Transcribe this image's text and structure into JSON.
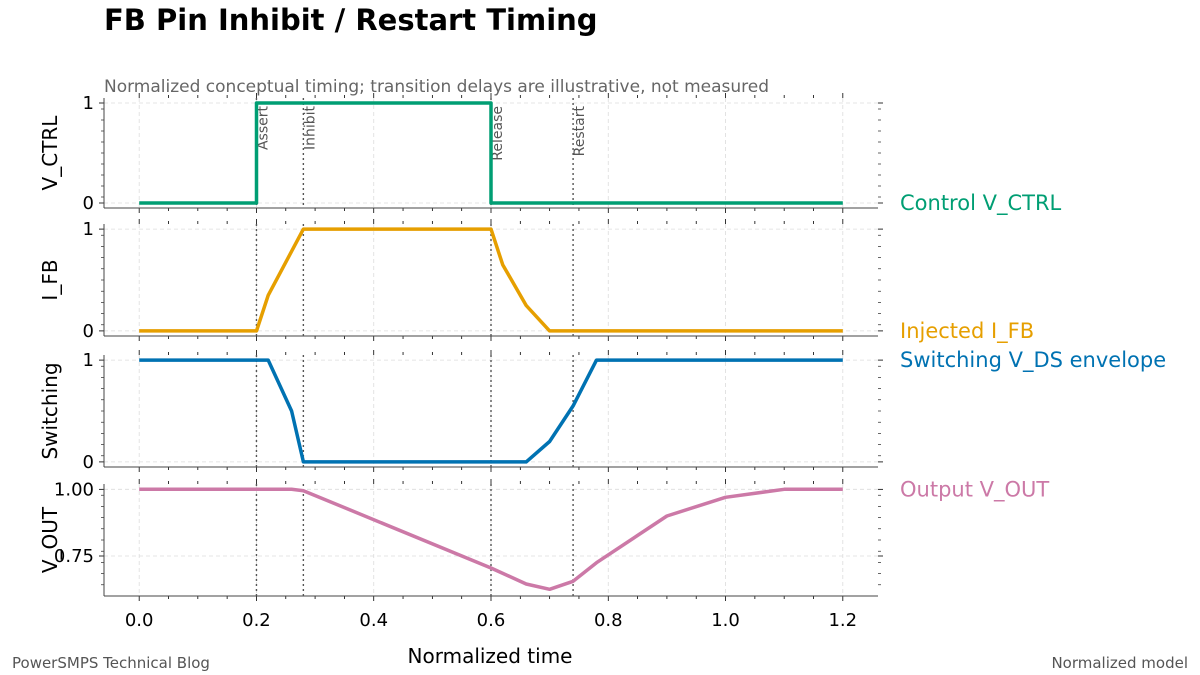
{
  "title": "FB Pin Inhibit / Restart Timing",
  "subtitle": "Normalized conceptual timing; transition delays are illustrative, not measured",
  "footer_left": "PowerSMPS Technical Blog",
  "footer_right": "Normalized model",
  "chart_data": {
    "type": "line",
    "xlabel": "Normalized time",
    "xlim": [
      -0.06,
      1.26
    ],
    "xticks": [
      "0.0",
      "0.2",
      "0.4",
      "0.6",
      "0.8",
      "1.0",
      "1.2"
    ],
    "grid": true,
    "events": [
      {
        "label": "Assert",
        "x": 0.2
      },
      {
        "label": "Inhibit",
        "x": 0.28
      },
      {
        "label": "Release",
        "x": 0.6
      },
      {
        "label": "Restart",
        "x": 0.74
      }
    ],
    "panels": [
      {
        "ylabel": "V_CTRL",
        "ylim": [
          -0.05,
          1.05
        ],
        "yticks": [
          "0",
          "1"
        ],
        "series": {
          "name": "Control V_CTRL",
          "color": "#009E73",
          "x": [
            0.0,
            0.2,
            0.2,
            0.6,
            0.6,
            1.2
          ],
          "y": [
            0,
            0,
            1,
            1,
            0,
            0
          ]
        }
      },
      {
        "ylabel": "I_FB",
        "ylim": [
          -0.05,
          1.05
        ],
        "yticks": [
          "0",
          "1"
        ],
        "series": {
          "name": "Injected I_FB",
          "color": "#E69F00",
          "x": [
            0.0,
            0.2,
            0.22,
            0.28,
            0.6,
            0.62,
            0.66,
            0.7,
            1.2
          ],
          "y": [
            0,
            0,
            0.35,
            1,
            1,
            0.65,
            0.25,
            0,
            0
          ]
        }
      },
      {
        "ylabel": "Switching",
        "ylim": [
          -0.05,
          1.05
        ],
        "yticks": [
          "0",
          "1"
        ],
        "series": {
          "name": "Switching V_DS envelope",
          "color": "#0072B2",
          "x": [
            0.0,
            0.22,
            0.26,
            0.28,
            0.66,
            0.7,
            0.74,
            0.78,
            1.2
          ],
          "y": [
            1,
            1,
            0.5,
            0,
            0,
            0.2,
            0.55,
            1,
            1
          ]
        }
      },
      {
        "ylabel": "V_OUT",
        "ylim": [
          0.6,
          1.02
        ],
        "yticks": [
          "0.75",
          "1.00"
        ],
        "series": {
          "name": "Output V_OUT",
          "color": "#CC79A7",
          "x": [
            0.0,
            0.26,
            0.28,
            0.6,
            0.66,
            0.7,
            0.74,
            0.78,
            0.9,
            1.0,
            1.1,
            1.2
          ],
          "y": [
            1.0,
            1.0,
            0.995,
            0.705,
            0.645,
            0.625,
            0.655,
            0.725,
            0.9,
            0.97,
            1.0,
            1.0
          ]
        }
      }
    ]
  }
}
